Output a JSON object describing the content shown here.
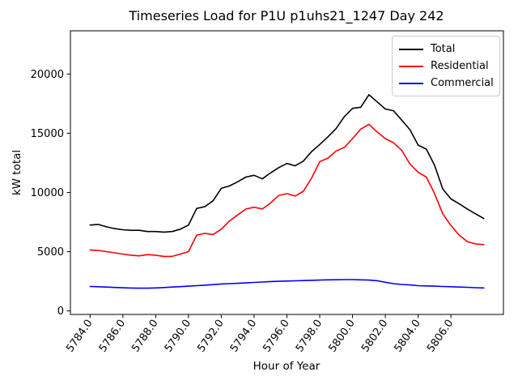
{
  "title": "Timeseries Load for P1U p1uhs21_1247  Day 242",
  "chart_data": {
    "type": "line",
    "title": "Timeseries Load for P1U p1uhs21_1247  Day 242",
    "xlabel": "Hour of Year",
    "ylabel": "kW total",
    "grid": false,
    "legend_position": "upper right",
    "xlim": [
      5782.8,
      5809.2
    ],
    "ylim": [
      -300,
      23650
    ],
    "xticks": [
      5784,
      5786,
      5788,
      5790,
      5792,
      5794,
      5796,
      5798,
      5800,
      5802,
      5804,
      5806
    ],
    "xtick_labels": [
      "5784.0",
      "5786.0",
      "5788.0",
      "5790.0",
      "5792.0",
      "5794.0",
      "5796.0",
      "5798.0",
      "5800.0",
      "5802.0",
      "5804.0",
      "5806.0"
    ],
    "yticks": [
      0,
      5000,
      10000,
      15000,
      20000
    ],
    "ytick_labels": [
      "0",
      "5000",
      "10000",
      "15000",
      "20000"
    ],
    "x": [
      5784.0,
      5784.5,
      5785.0,
      5785.5,
      5786.0,
      5786.5,
      5787.0,
      5787.5,
      5788.0,
      5788.5,
      5789.0,
      5789.5,
      5790.0,
      5790.5,
      5791.0,
      5791.5,
      5792.0,
      5792.5,
      5793.0,
      5793.5,
      5794.0,
      5794.5,
      5795.0,
      5795.5,
      5796.0,
      5796.5,
      5797.0,
      5797.5,
      5798.0,
      5798.5,
      5799.0,
      5799.5,
      5800.0,
      5800.5,
      5801.0,
      5801.5,
      5802.0,
      5802.5,
      5803.0,
      5803.5,
      5804.0,
      5804.5,
      5805.0,
      5805.5,
      5806.0,
      5806.5,
      5807.0,
      5807.5,
      5808.0
    ],
    "series": [
      {
        "name": "Total",
        "color": "#000000",
        "values": [
          7250,
          7300,
          7100,
          6950,
          6850,
          6800,
          6800,
          6700,
          6700,
          6650,
          6700,
          6900,
          7250,
          8650,
          8800,
          9300,
          10350,
          10550,
          10900,
          11300,
          11450,
          11150,
          11650,
          12100,
          12450,
          12250,
          12650,
          13450,
          14050,
          14700,
          15400,
          16400,
          17100,
          17200,
          18250,
          17650,
          17050,
          16900,
          16100,
          15300,
          14000,
          13650,
          12300,
          10300,
          9450,
          9050,
          8600,
          8200,
          7800
        ]
      },
      {
        "name": "Residential",
        "color": "#ff0000",
        "values": [
          5150,
          5100,
          5000,
          4900,
          4800,
          4700,
          4650,
          4750,
          4700,
          4600,
          4600,
          4800,
          5000,
          6400,
          6550,
          6450,
          6900,
          7600,
          8100,
          8600,
          8750,
          8600,
          9100,
          9750,
          9900,
          9700,
          10100,
          11200,
          12600,
          12900,
          13500,
          13800,
          14550,
          15350,
          15750,
          15100,
          14550,
          14200,
          13550,
          12400,
          11700,
          11300,
          9900,
          8200,
          7200,
          6400,
          5850,
          5650,
          5600
        ]
      },
      {
        "name": "Commercial",
        "color": "#0000ff",
        "values": [
          2060,
          2040,
          2010,
          1980,
          1950,
          1930,
          1920,
          1920,
          1940,
          1970,
          2010,
          2050,
          2090,
          2130,
          2170,
          2220,
          2270,
          2300,
          2330,
          2360,
          2400,
          2440,
          2480,
          2500,
          2520,
          2540,
          2560,
          2580,
          2600,
          2620,
          2630,
          2640,
          2640,
          2620,
          2600,
          2550,
          2420,
          2300,
          2230,
          2190,
          2130,
          2110,
          2090,
          2060,
          2040,
          2010,
          1990,
          1960,
          1940
        ]
      }
    ]
  }
}
